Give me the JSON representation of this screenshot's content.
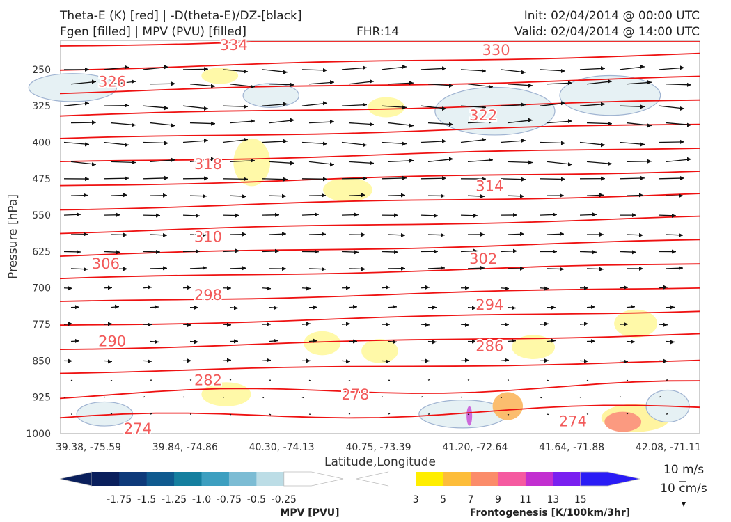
{
  "header": {
    "title_line1": "Theta-E (K) [red] | -D(theta-E)/DZ-[black]",
    "title_line2": "Fgen [filled] | MPV (PVU) [filled]",
    "fhr": "FHR:14",
    "init": "Init: 02/04/2014 @ 00:00 UTC",
    "valid": "Valid: 02/04/2014 @ 14:00 UTC"
  },
  "chart_data": {
    "type": "cross-section",
    "title": "Theta-E (K) [red] | -D(theta-E)/DZ-[black] | Fgen [filled] | MPV (PVU) [filled]",
    "xlabel": "Latitude,Longitude",
    "ylabel": "Pressure [hPa]",
    "x_ticks": [
      "39.38, -75.59",
      "39.84, -74.86",
      "40.30, -74.13",
      "40.75, -73.39",
      "41.20, -72.64",
      "41.64, -71.88",
      "42.08, -71.11"
    ],
    "y_ticks": [
      250,
      325,
      400,
      475,
      550,
      625,
      700,
      775,
      850,
      925,
      1000
    ],
    "ylim": [
      1000,
      190
    ],
    "theta_e_contour_labels": [
      {
        "value": 334,
        "x": 0.25,
        "p": 200
      },
      {
        "value": 330,
        "x": 0.66,
        "p": 210
      },
      {
        "value": 326,
        "x": 0.06,
        "p": 275
      },
      {
        "value": 322,
        "x": 0.64,
        "p": 345
      },
      {
        "value": 318,
        "x": 0.21,
        "p": 445
      },
      {
        "value": 314,
        "x": 0.65,
        "p": 490
      },
      {
        "value": 310,
        "x": 0.21,
        "p": 595
      },
      {
        "value": 306,
        "x": 0.05,
        "p": 650
      },
      {
        "value": 302,
        "x": 0.64,
        "p": 640
      },
      {
        "value": 298,
        "x": 0.21,
        "p": 715
      },
      {
        "value": 294,
        "x": 0.65,
        "p": 735
      },
      {
        "value": 290,
        "x": 0.06,
        "p": 810
      },
      {
        "value": 286,
        "x": 0.65,
        "p": 820
      },
      {
        "value": 282,
        "x": 0.21,
        "p": 890
      },
      {
        "value": 278,
        "x": 0.44,
        "p": 920
      },
      {
        "value": 274,
        "x": 0.1,
        "p": 990
      },
      {
        "value": 274,
        "x": 0.78,
        "p": 975
      }
    ],
    "mpv_colorbar": {
      "label": "MPV [PVU]",
      "ticks": [
        "-1.75",
        "-1.5",
        "-1.25",
        "-1.0",
        "-0.75",
        "-0.5",
        "-0.25"
      ],
      "colors": [
        "#0a1f5c",
        "#0e3a7a",
        "#0f5a8f",
        "#157f9f",
        "#3d9fc0",
        "#7cbcd4",
        "#bcdde6",
        "#ffffff"
      ]
    },
    "fgen_colorbar": {
      "label": "Frontogenesis [K/100km/3hr]",
      "ticks": [
        "3",
        "5",
        "7",
        "9",
        "11",
        "13",
        "15"
      ],
      "colors": [
        "#ffffff",
        "#ffee00",
        "#fdbd3a",
        "#fb8c6a",
        "#f55aa0",
        "#c22fd0",
        "#7a20f0",
        "#2a1cf5"
      ]
    },
    "grid": false
  },
  "legend": {
    "wind_ref": "10 m/s",
    "vert_ref": "10 cm/s"
  },
  "colors": {
    "theta_e": "#ee1111",
    "wind": "#111111",
    "mpv_outline": "#9fb3d1"
  }
}
